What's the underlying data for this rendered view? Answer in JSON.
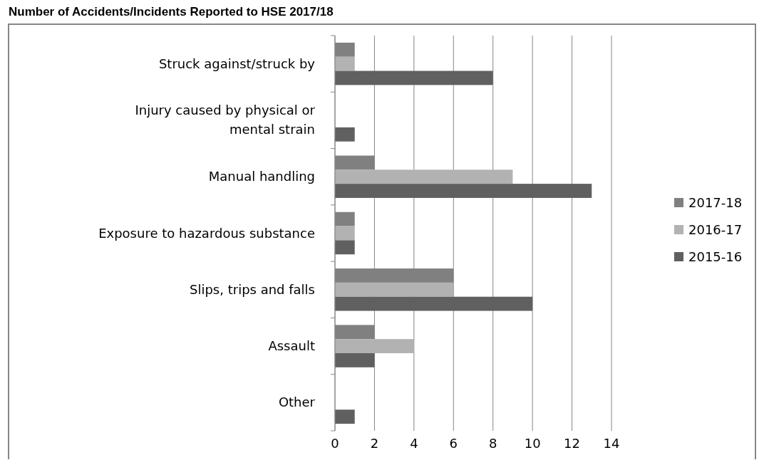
{
  "chart_data": {
    "type": "bar",
    "orientation": "horizontal",
    "title": "Number of Accidents/Incidents Reported to HSE 2017/18",
    "categories": [
      "Struck against/struck by",
      "Injury caused by physical or mental strain",
      "Manual handling",
      "Exposure to hazardous substance",
      "Slips, trips and falls",
      "Assault",
      "Other"
    ],
    "series": [
      {
        "name": "2017-18",
        "color": "#808080",
        "values": [
          1,
          0,
          2,
          1,
          6,
          2,
          0
        ]
      },
      {
        "name": "2016-17",
        "color": "#b2b2b2",
        "values": [
          1,
          0,
          9,
          1,
          6,
          4,
          0
        ]
      },
      {
        "name": "2015-16",
        "color": "#606060",
        "values": [
          8,
          1,
          13,
          1,
          10,
          2,
          1
        ]
      }
    ],
    "xlim": [
      0,
      14
    ],
    "xticks": [
      0,
      2,
      4,
      6,
      8,
      10,
      12,
      14
    ],
    "grid": "x",
    "legend": "right"
  }
}
